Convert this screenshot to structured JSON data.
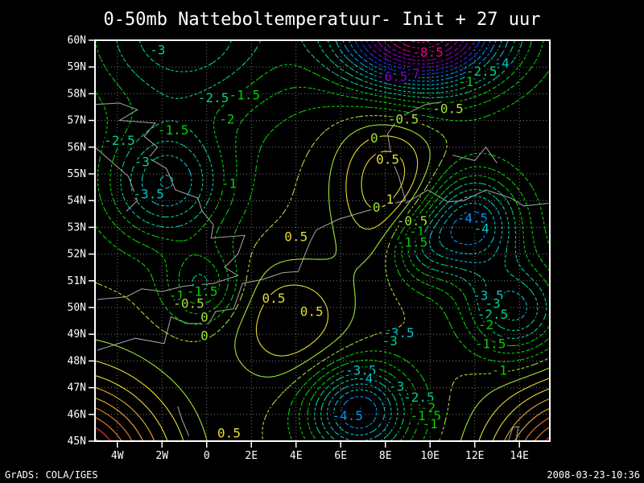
{
  "title": "0-50mb Natteboltemperatuur- Init + 27 uur",
  "footer": {
    "left": "GrADS: COLA/IGES",
    "right": "2008-03-23-10:36"
  },
  "chart_data": {
    "type": "contour",
    "title": "0-50mb Natteboltemperatuur- Init + 27 uur",
    "field": "wet-bulb temperature (Natteboltemperatuur), 0-50mb layer, forecast Init + 27 uur",
    "contour_interval": 0.5,
    "negative_style": "dashed",
    "positive_style": "solid",
    "x_axis": {
      "range": [
        -5,
        15.36
      ],
      "tick_labels": [
        "4W",
        "2W",
        "0",
        "2E",
        "4E",
        "6E",
        "8E",
        "10E",
        "12E",
        "14E"
      ],
      "tick_lons": [
        -4,
        -2,
        0,
        2,
        4,
        6,
        8,
        10,
        12,
        14
      ]
    },
    "y_axis": {
      "range": [
        45,
        60
      ],
      "tick_labels": [
        "60N",
        "59N",
        "58N",
        "57N",
        "56N",
        "55N",
        "54N",
        "53N",
        "52N",
        "51N",
        "50N",
        "49N",
        "48N",
        "47N",
        "46N",
        "45N"
      ],
      "tick_lats": [
        60,
        59,
        58,
        57,
        56,
        55,
        54,
        53,
        52,
        51,
        50,
        49,
        48,
        47,
        46,
        45
      ]
    },
    "grid": {
      "color": "#787878",
      "x_step_deg": 2,
      "y_step_deg": 1
    },
    "frame_color": "#ffffff",
    "coastline_color": "#a8a8a8",
    "background": "#000000",
    "palette": [
      {
        "max": -8.25,
        "color": "#f0008c"
      },
      {
        "max": -7.25,
        "color": "#a000c8"
      },
      {
        "max": -6.25,
        "color": "#8200dc"
      },
      {
        "max": -5.25,
        "color": "#1e3cff"
      },
      {
        "max": -4.25,
        "color": "#0096ff"
      },
      {
        "max": -3.25,
        "color": "#00c8c8"
      },
      {
        "max": -2.25,
        "color": "#00d28c"
      },
      {
        "max": -0.75,
        "color": "#00d200"
      },
      {
        "max": 0.25,
        "color": "#a0e632"
      },
      {
        "max": 1.25,
        "color": "#e6dc32"
      },
      {
        "max": 2.25,
        "color": "#e6af2d"
      },
      {
        "max": 3.25,
        "color": "#f08228"
      },
      {
        "max": 4.25,
        "color": "#fa3c3c"
      },
      {
        "max": 99,
        "color": "#f0008c"
      }
    ],
    "level_min": -9.5,
    "level_max": 4.5,
    "contour_labels": [
      {
        "v": "-3",
        "lon": -2.2,
        "lat": 59.6
      },
      {
        "v": "-2.5",
        "lon": 0.3,
        "lat": 57.8
      },
      {
        "v": "-2",
        "lon": 0.9,
        "lat": 57.0
      },
      {
        "v": "-1.5",
        "lon": 1.7,
        "lat": 57.9
      },
      {
        "v": "-1.5",
        "lon": -1.5,
        "lat": 56.6
      },
      {
        "v": "-2.5",
        "lon": -3.9,
        "lat": 56.2
      },
      {
        "v": "-3",
        "lon": -2.9,
        "lat": 55.4
      },
      {
        "v": "-3.5",
        "lon": -2.6,
        "lat": 54.2
      },
      {
        "v": "-1",
        "lon": 1.0,
        "lat": 54.6
      },
      {
        "v": "-8.5",
        "lon": 9.9,
        "lat": 59.5
      },
      {
        "v": "-7",
        "lon": 9.2,
        "lat": 58.7
      },
      {
        "v": "-6.5",
        "lon": 8.3,
        "lat": 58.6
      },
      {
        "v": "-4",
        "lon": 13.2,
        "lat": 59.1
      },
      {
        "v": "-2.5",
        "lon": 12.3,
        "lat": 58.8
      },
      {
        "v": "-1",
        "lon": 11.6,
        "lat": 58.4
      },
      {
        "v": "-0.5",
        "lon": 8.8,
        "lat": 57.0
      },
      {
        "v": "-0.5",
        "lon": 10.8,
        "lat": 57.4
      },
      {
        "v": "0",
        "lon": 7.5,
        "lat": 56.3
      },
      {
        "v": "0.5",
        "lon": 8.1,
        "lat": 55.5
      },
      {
        "v": "1",
        "lon": 8.2,
        "lat": 54.0
      },
      {
        "v": "0",
        "lon": 7.6,
        "lat": 53.7
      },
      {
        "v": "0.5",
        "lon": 4.0,
        "lat": 52.6
      },
      {
        "v": "-0.5",
        "lon": 9.2,
        "lat": 53.2
      },
      {
        "v": "-1",
        "lon": 9.4,
        "lat": 52.8
      },
      {
        "v": "-1.5",
        "lon": 9.2,
        "lat": 52.4
      },
      {
        "v": "-4.5",
        "lon": 11.9,
        "lat": 53.3
      },
      {
        "v": "-4",
        "lon": 12.3,
        "lat": 52.9
      },
      {
        "v": "-3.5",
        "lon": 12.6,
        "lat": 50.4
      },
      {
        "v": "-3",
        "lon": 12.8,
        "lat": 50.1
      },
      {
        "v": "-2.5",
        "lon": 12.8,
        "lat": 49.7
      },
      {
        "v": "-2",
        "lon": 12.5,
        "lat": 49.3
      },
      {
        "v": "-1.5",
        "lon": 12.7,
        "lat": 48.6
      },
      {
        "v": "-1",
        "lon": 13.1,
        "lat": 47.6
      },
      {
        "v": "-1.5",
        "lon": -0.2,
        "lat": 50.55
      },
      {
        "v": "-1",
        "lon": -1.35,
        "lat": 50.4
      },
      {
        "v": "-0.5",
        "lon": -0.8,
        "lat": 50.1
      },
      {
        "v": "0",
        "lon": -0.1,
        "lat": 49.6
      },
      {
        "v": "0",
        "lon": -0.1,
        "lat": 48.9
      },
      {
        "v": "0.5",
        "lon": 3.0,
        "lat": 50.3
      },
      {
        "v": "0.5",
        "lon": 4.7,
        "lat": 49.8
      },
      {
        "v": "0.5",
        "lon": 1.0,
        "lat": 45.25
      },
      {
        "v": "-3.5",
        "lon": 8.6,
        "lat": 49.0
      },
      {
        "v": "-3",
        "lon": 8.2,
        "lat": 48.7
      },
      {
        "v": "-3.5",
        "lon": 6.9,
        "lat": 47.6
      },
      {
        "v": "-4",
        "lon": 7.1,
        "lat": 47.3
      },
      {
        "v": "-3",
        "lon": 8.5,
        "lat": 47.0
      },
      {
        "v": "-2.5",
        "lon": 9.5,
        "lat": 46.6
      },
      {
        "v": "-2",
        "lon": 9.9,
        "lat": 46.2
      },
      {
        "v": "-1.5",
        "lon": 9.8,
        "lat": 45.9
      },
      {
        "v": "-1",
        "lon": 10.0,
        "lat": 45.6
      },
      {
        "v": "-4.5",
        "lon": 6.3,
        "lat": 45.9
      }
    ],
    "field_model": {
      "base": -0.5,
      "gaussians": [
        [
          9.6,
          60.4,
          -9.5,
          2.6,
          1.5
        ],
        [
          -1.8,
          54.6,
          -3.4,
          1.9,
          1.5
        ],
        [
          -1.0,
          60.3,
          -3.0,
          3.4,
          2.3
        ],
        [
          8.1,
          54.6,
          2.0,
          1.6,
          1.9
        ],
        [
          6.8,
          46.1,
          -4.6,
          1.6,
          1.2
        ],
        [
          11.9,
          53.1,
          -4.3,
          1.5,
          1.3
        ],
        [
          -6.5,
          43.8,
          6.0,
          3.0,
          2.3
        ],
        [
          16.8,
          43.6,
          6.0,
          2.6,
          2.2
        ],
        [
          -0.2,
          50.8,
          -2.1,
          1.15,
          0.95
        ],
        [
          3.8,
          49.4,
          1.5,
          1.9,
          1.6
        ],
        [
          13.8,
          49.9,
          -3.2,
          1.5,
          1.2
        ],
        [
          9.6,
          52.3,
          -2.0,
          1.1,
          1.0
        ]
      ]
    },
    "coastlines": [
      [
        [
          -5,
          57.6
        ],
        [
          -3.9,
          57.65
        ],
        [
          -3.1,
          57.4
        ],
        [
          -3.9,
          57.0
        ],
        [
          -2.3,
          56.9
        ],
        [
          -2.8,
          56.4
        ],
        [
          -2.2,
          56.0
        ],
        [
          -2.6,
          55.6
        ],
        [
          -1.8,
          55.2
        ],
        [
          -1.4,
          54.4
        ],
        [
          -0.4,
          54.1
        ],
        [
          -0.2,
          53.6
        ],
        [
          0.3,
          53.1
        ],
        [
          0.2,
          52.6
        ],
        [
          1.7,
          52.7
        ],
        [
          1.4,
          52.0
        ],
        [
          0.8,
          51.5
        ],
        [
          1.4,
          51.2
        ],
        [
          0.3,
          50.9
        ],
        [
          -1.0,
          50.8
        ],
        [
          -2.0,
          50.6
        ],
        [
          -2.9,
          50.7
        ],
        [
          -3.6,
          50.4
        ],
        [
          -4.9,
          50.3
        ]
      ],
      [
        [
          -5,
          56.0
        ],
        [
          -3.5,
          54.9
        ],
        [
          -3.1,
          54.0
        ],
        [
          -3.6,
          53.6
        ]
      ],
      [
        [
          -4.9,
          48.4
        ],
        [
          -3.2,
          48.85
        ],
        [
          -1.9,
          48.65
        ],
        [
          -1.6,
          49.65
        ],
        [
          -0.9,
          49.4
        ],
        [
          0.1,
          49.4
        ],
        [
          0.4,
          49.85
        ],
        [
          1.2,
          49.95
        ],
        [
          1.6,
          50.9
        ],
        [
          2.5,
          51.05
        ],
        [
          3.4,
          51.3
        ],
        [
          4.1,
          51.35
        ],
        [
          4.6,
          52.4
        ],
        [
          4.9,
          52.9
        ],
        [
          5.9,
          53.3
        ],
        [
          7.1,
          53.6
        ],
        [
          8.4,
          53.9
        ],
        [
          8.9,
          54.0
        ],
        [
          8.6,
          54.9
        ],
        [
          8.3,
          55.5
        ],
        [
          8.1,
          56.5
        ],
        [
          8.6,
          57.1
        ],
        [
          9.8,
          57.6
        ],
        [
          10.6,
          57.7
        ]
      ],
      [
        [
          8.9,
          53.9
        ],
        [
          9.9,
          54.4
        ],
        [
          10.8,
          53.95
        ],
        [
          11.5,
          54.0
        ],
        [
          12.5,
          54.4
        ],
        [
          13.6,
          54.1
        ],
        [
          14.2,
          53.8
        ],
        [
          15.3,
          53.9
        ]
      ],
      [
        [
          11.0,
          55.7
        ],
        [
          12.0,
          55.5
        ],
        [
          12.5,
          56.0
        ],
        [
          13.0,
          55.4
        ]
      ],
      [
        [
          13.5,
          45.0
        ],
        [
          13.7,
          45.5
        ],
        [
          13.95,
          45.55
        ],
        [
          13.85,
          45.0
        ]
      ],
      [
        [
          -1.3,
          46.3
        ],
        [
          -1.1,
          45.8
        ],
        [
          -0.8,
          45.2
        ]
      ]
    ]
  }
}
